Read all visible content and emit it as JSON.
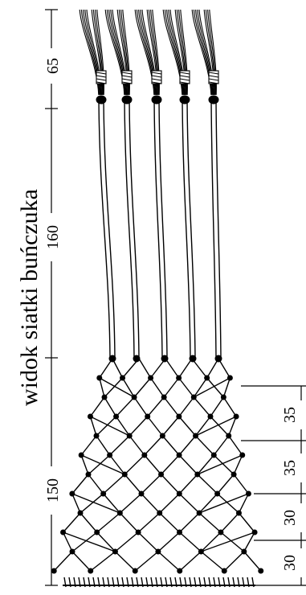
{
  "diagram": {
    "title": "widok siatki buńczuka",
    "left_dimensions": [
      "65",
      "160",
      "150"
    ],
    "right_dimensions": [
      "35",
      "35",
      "30",
      "30"
    ]
  },
  "colors": {
    "ink": "#000000",
    "paper": "#ffffff"
  }
}
